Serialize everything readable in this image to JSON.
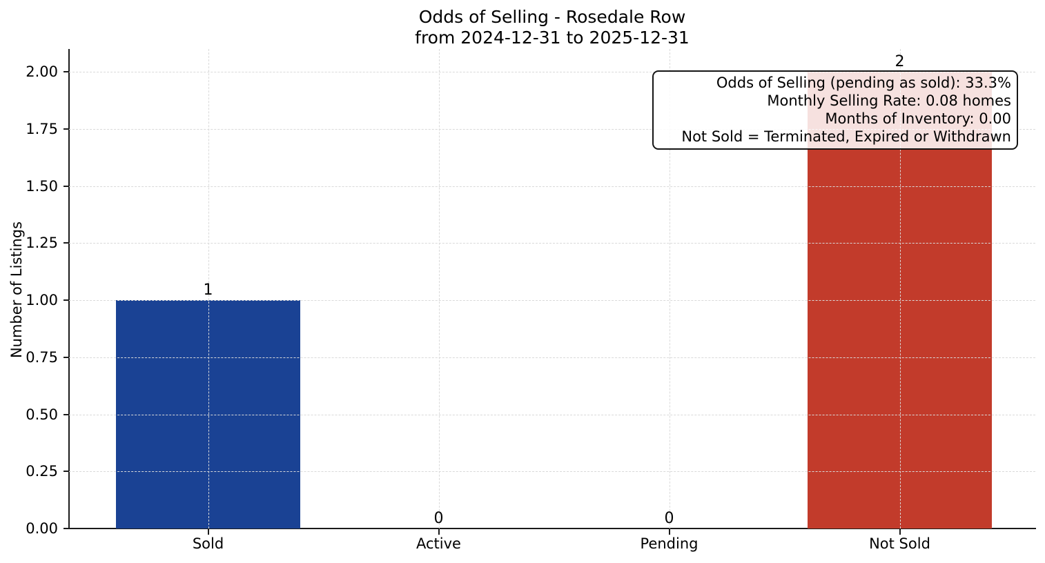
{
  "chart_data": {
    "type": "bar",
    "title": "Odds of Selling - Rosedale Row",
    "subtitle": "from 2024-12-31 to 2025-12-31",
    "categories": [
      "Sold",
      "Active",
      "Pending",
      "Not Sold"
    ],
    "values": [
      1,
      0,
      0,
      2
    ],
    "bar_value_labels": [
      "1",
      "0",
      "0",
      "2"
    ],
    "bar_colors": [
      "#1a4294",
      null,
      null,
      "#c23b2b"
    ],
    "xlabel": "",
    "ylabel": "Number of Listings",
    "ylim": [
      0,
      2.1
    ],
    "ytick_labels": [
      "0.00",
      "0.25",
      "0.50",
      "0.75",
      "1.00",
      "1.25",
      "1.50",
      "1.75",
      "2.00"
    ],
    "grid": true,
    "grid_style": "dashed",
    "legend": false,
    "annotation": {
      "position": "top-right",
      "text_align": "right",
      "lines": [
        "Odds of Selling (pending as sold): 33.3%",
        "Monthly Selling Rate: 0.08 homes",
        "Months of Inventory: 0.00",
        "Not Sold = Terminated, Expired or Withdrawn"
      ]
    }
  },
  "colors": {
    "sold_bar": "#1a4294",
    "not_sold_bar": "#c23b2b",
    "grid": "#d9d9d9",
    "spine": "#1a1a1a",
    "annotation_border": "#141414",
    "background": "#ffffff",
    "text": "#000000"
  }
}
